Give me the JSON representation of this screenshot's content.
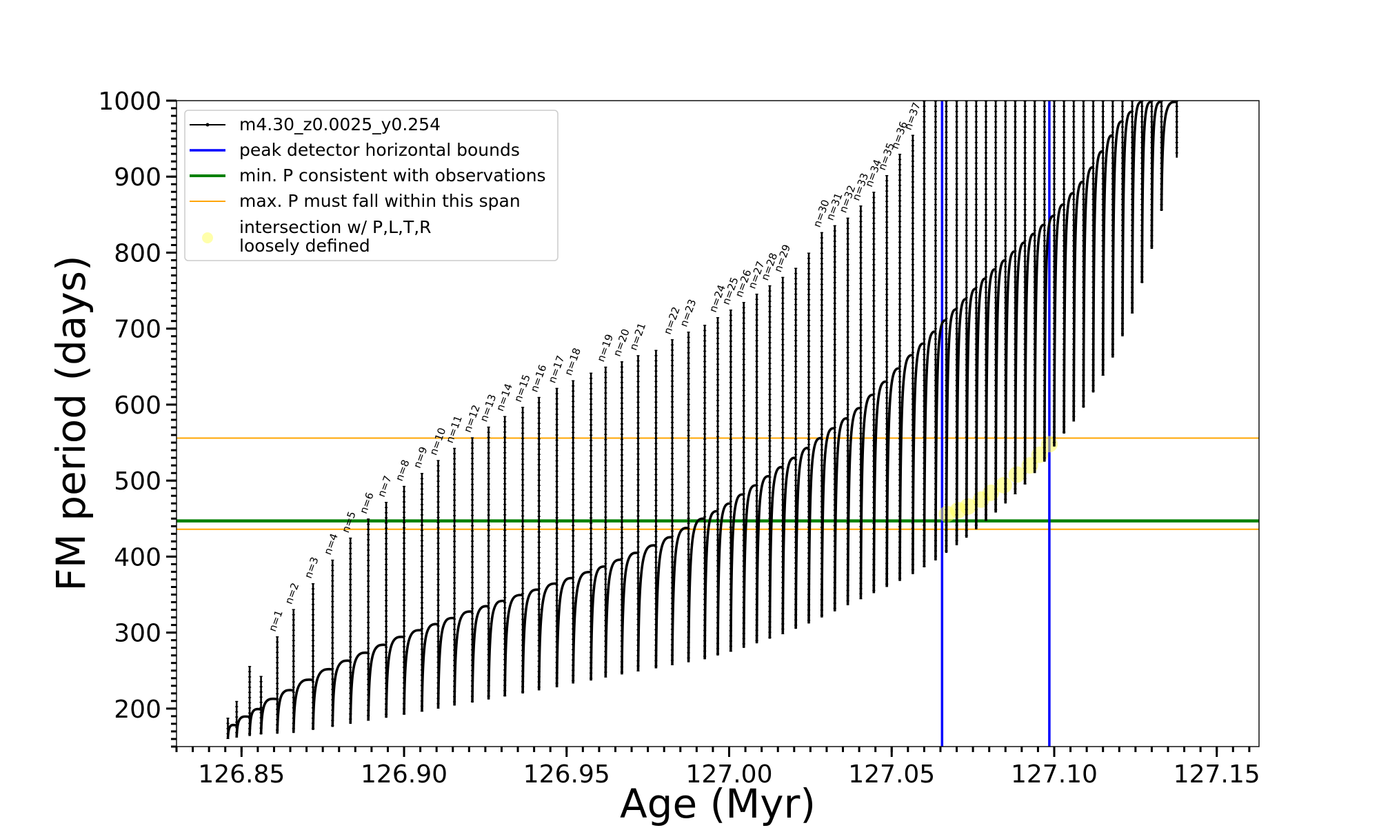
{
  "chart_data": {
    "type": "line",
    "xlabel": "Age (Myr)",
    "ylabel": "FM period (days)",
    "xlim": [
      126.83,
      127.163
    ],
    "ylim": [
      150,
      1000
    ],
    "xticks": [
      126.85,
      126.9,
      126.95,
      127.0,
      127.05,
      127.1,
      127.15
    ],
    "xtick_labels": [
      "126.85",
      "126.90",
      "126.95",
      "127.00",
      "127.05",
      "127.10",
      "127.15"
    ],
    "yticks": [
      200,
      300,
      400,
      500,
      600,
      700,
      800,
      900,
      1000
    ],
    "ytick_labels": [
      "200",
      "300",
      "400",
      "500",
      "600",
      "700",
      "800",
      "900",
      "1000"
    ],
    "x_minor_step": 0.005,
    "y_minor_step": 10,
    "grid": false,
    "legend_position": "upper-left",
    "legend": [
      {
        "label": "m4.30_z0.0025_y0.254",
        "color": "#000000",
        "kind": "line-marker"
      },
      {
        "label": "peak detector horizontal bounds",
        "color": "#0000ff",
        "kind": "line"
      },
      {
        "label": "min. P consistent with observations",
        "color": "#008000",
        "kind": "line"
      },
      {
        "label": "max. P must fall within this span",
        "color": "#ffa500",
        "kind": "line"
      },
      {
        "label": "intersection w/ P,L,T,R",
        "label2": "loosely defined",
        "color": "#ffff66",
        "kind": "marker"
      }
    ],
    "reference_lines": {
      "vertical_blue": [
        127.0655,
        127.0985
      ],
      "horizontal_green": 447,
      "horizontal_orange": [
        436,
        556
      ]
    },
    "track": {
      "name": "m4.30_z0.0025_y0.254",
      "color": "#000000",
      "pulse_count": 72,
      "x_start": 126.8458,
      "x_end": 127.1377,
      "pulses": [
        {
          "x": 126.8458,
          "min": 160,
          "max": 188
        },
        {
          "x": 126.8485,
          "min": 162,
          "max": 210
        },
        {
          "x": 126.8525,
          "min": 164,
          "max": 256
        },
        {
          "x": 126.856,
          "min": 166,
          "max": 243
        },
        {
          "x": 126.861,
          "min": 167,
          "max": 295,
          "n": "n=1"
        },
        {
          "x": 126.866,
          "min": 168,
          "max": 331,
          "n": "n=2"
        },
        {
          "x": 126.872,
          "min": 172,
          "max": 365,
          "n": "n=3"
        },
        {
          "x": 126.878,
          "min": 176,
          "max": 396,
          "n": "n=4"
        },
        {
          "x": 126.8835,
          "min": 180,
          "max": 425,
          "n": "n=5"
        },
        {
          "x": 126.889,
          "min": 184,
          "max": 450,
          "n": "n=6"
        },
        {
          "x": 126.8945,
          "min": 188,
          "max": 472,
          "n": "n=7"
        },
        {
          "x": 126.9,
          "min": 192,
          "max": 493,
          "n": "n=8"
        },
        {
          "x": 126.9055,
          "min": 196,
          "max": 510,
          "n": "n=9"
        },
        {
          "x": 126.9105,
          "min": 200,
          "max": 527,
          "n": "n=10"
        },
        {
          "x": 126.9155,
          "min": 204,
          "max": 543,
          "n": "n=11"
        },
        {
          "x": 126.921,
          "min": 208,
          "max": 557,
          "n": "n=12"
        },
        {
          "x": 126.926,
          "min": 212,
          "max": 571,
          "n": "n=13"
        },
        {
          "x": 126.931,
          "min": 216,
          "max": 585,
          "n": "n=14"
        },
        {
          "x": 126.9365,
          "min": 220,
          "max": 597,
          "n": "n=15"
        },
        {
          "x": 126.9415,
          "min": 224,
          "max": 610,
          "n": "n=16"
        },
        {
          "x": 126.947,
          "min": 228,
          "max": 622,
          "n": "n=17"
        },
        {
          "x": 126.952,
          "min": 233,
          "max": 632,
          "n": "n=18"
        },
        {
          "x": 126.9575,
          "min": 237,
          "max": 642
        },
        {
          "x": 126.962,
          "min": 241,
          "max": 650,
          "n": "n=19"
        },
        {
          "x": 126.967,
          "min": 245,
          "max": 657,
          "n": "n=20"
        },
        {
          "x": 126.972,
          "min": 249,
          "max": 665,
          "n": "n=21"
        },
        {
          "x": 126.9775,
          "min": 253,
          "max": 672
        },
        {
          "x": 126.9825,
          "min": 257,
          "max": 686,
          "n": "n=22"
        },
        {
          "x": 126.9875,
          "min": 261,
          "max": 696,
          "n": "n=23"
        },
        {
          "x": 126.9925,
          "min": 265,
          "max": 705
        },
        {
          "x": 126.9965,
          "min": 270,
          "max": 715,
          "n": "n=24"
        },
        {
          "x": 127.0005,
          "min": 275,
          "max": 725,
          "n": "n=25"
        },
        {
          "x": 127.0045,
          "min": 280,
          "max": 735,
          "n": "n=26"
        },
        {
          "x": 127.0085,
          "min": 286,
          "max": 746,
          "n": "n=27"
        },
        {
          "x": 127.0125,
          "min": 292,
          "max": 757,
          "n": "n=28"
        },
        {
          "x": 127.0165,
          "min": 298,
          "max": 768,
          "n": "n=29"
        },
        {
          "x": 127.0205,
          "min": 305,
          "max": 780
        },
        {
          "x": 127.0245,
          "min": 312,
          "max": 800
        },
        {
          "x": 127.0285,
          "min": 320,
          "max": 827,
          "n": "n=30"
        },
        {
          "x": 127.0325,
          "min": 328,
          "max": 836,
          "n": "n=31"
        },
        {
          "x": 127.0365,
          "min": 336,
          "max": 846,
          "n": "n=32"
        },
        {
          "x": 127.0405,
          "min": 344,
          "max": 862,
          "n": "n=33"
        },
        {
          "x": 127.0445,
          "min": 352,
          "max": 880,
          "n": "n=34"
        },
        {
          "x": 127.0485,
          "min": 360,
          "max": 902,
          "n": "n=35"
        },
        {
          "x": 127.0525,
          "min": 368,
          "max": 930,
          "n": "n=36"
        },
        {
          "x": 127.0565,
          "min": 377,
          "max": 955,
          "n": "n=37"
        },
        {
          "x": 127.06,
          "min": 386,
          "max": 1000
        },
        {
          "x": 127.0635,
          "min": 395,
          "max": 1000
        },
        {
          "x": 127.0668,
          "min": 405,
          "max": 1000
        },
        {
          "x": 127.07,
          "min": 415,
          "max": 1000
        },
        {
          "x": 127.073,
          "min": 425,
          "max": 1000
        },
        {
          "x": 127.076,
          "min": 436,
          "max": 1000
        },
        {
          "x": 127.079,
          "min": 447,
          "max": 1000
        },
        {
          "x": 127.082,
          "min": 458,
          "max": 1000
        },
        {
          "x": 127.085,
          "min": 470,
          "max": 1000
        },
        {
          "x": 127.088,
          "min": 482,
          "max": 1000
        },
        {
          "x": 127.091,
          "min": 495,
          "max": 1000
        },
        {
          "x": 127.094,
          "min": 510,
          "max": 1000
        },
        {
          "x": 127.097,
          "min": 525,
          "max": 1000
        },
        {
          "x": 127.1,
          "min": 545,
          "max": 1000
        },
        {
          "x": 127.103,
          "min": 562,
          "max": 1000
        },
        {
          "x": 127.106,
          "min": 578,
          "max": 1000
        },
        {
          "x": 127.109,
          "min": 596,
          "max": 1000
        },
        {
          "x": 127.112,
          "min": 616,
          "max": 1000
        },
        {
          "x": 127.115,
          "min": 638,
          "max": 1000
        },
        {
          "x": 127.118,
          "min": 662,
          "max": 1000
        },
        {
          "x": 127.121,
          "min": 690,
          "max": 1000
        },
        {
          "x": 127.124,
          "min": 720,
          "max": 1000
        },
        {
          "x": 127.127,
          "min": 760,
          "max": 1000
        },
        {
          "x": 127.13,
          "min": 805,
          "max": 1000
        },
        {
          "x": 127.133,
          "min": 855,
          "max": 1000
        },
        {
          "x": 127.1377,
          "min": 925,
          "max": 1000
        }
      ],
      "baseline": [
        {
          "x": 126.8458,
          "y": 172
        },
        {
          "x": 126.86,
          "y": 212
        },
        {
          "x": 126.88,
          "y": 258
        },
        {
          "x": 126.9,
          "y": 296
        },
        {
          "x": 126.92,
          "y": 328
        },
        {
          "x": 126.94,
          "y": 356
        },
        {
          "x": 126.96,
          "y": 385
        },
        {
          "x": 126.98,
          "y": 421
        },
        {
          "x": 127.0,
          "y": 470
        },
        {
          "x": 127.02,
          "y": 530
        },
        {
          "x": 127.04,
          "y": 595
        },
        {
          "x": 127.06,
          "y": 682
        },
        {
          "x": 127.08,
          "y": 772
        },
        {
          "x": 127.1,
          "y": 850
        },
        {
          "x": 127.11,
          "y": 900
        },
        {
          "x": 127.12,
          "y": 970
        },
        {
          "x": 127.127,
          "y": 1000
        }
      ]
    },
    "intersection_points": [
      {
        "x": 127.067,
        "y": 456
      },
      {
        "x": 127.0705,
        "y": 461
      },
      {
        "x": 127.0735,
        "y": 466
      },
      {
        "x": 127.0775,
        "y": 475
      },
      {
        "x": 127.0805,
        "y": 484
      },
      {
        "x": 127.0845,
        "y": 494
      },
      {
        "x": 127.0885,
        "y": 508
      },
      {
        "x": 127.0925,
        "y": 520
      },
      {
        "x": 127.0955,
        "y": 534
      },
      {
        "x": 127.0985,
        "y": 548
      }
    ]
  }
}
